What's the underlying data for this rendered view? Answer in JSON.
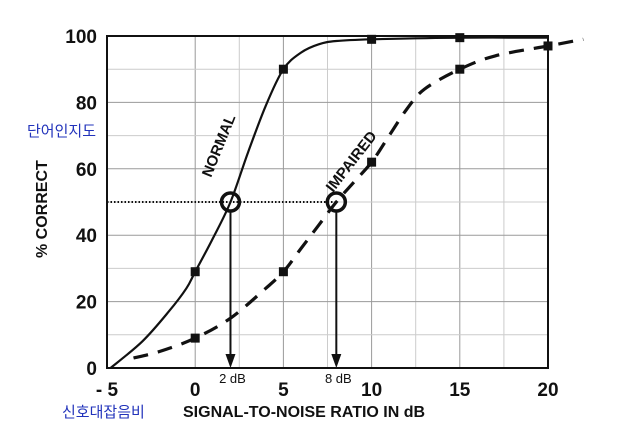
{
  "chart_data": {
    "type": "line",
    "xlabel": "SIGNAL-TO-NOISE RATIO IN dB",
    "ylabel": "% CORRECT",
    "xlim": [
      -5,
      20
    ],
    "ylim": [
      0,
      100
    ],
    "x_ticks": [
      -5,
      0,
      5,
      10,
      15,
      20
    ],
    "x_tick_labels": [
      "- 5",
      "0",
      "5",
      "10",
      "15",
      "20"
    ],
    "y_ticks": [
      0,
      20,
      40,
      60,
      80,
      100
    ],
    "y_tick_labels": [
      "0",
      "20",
      "40",
      "60",
      "80",
      "100"
    ],
    "grid": true,
    "series": [
      {
        "name": "NORMAL",
        "line_style": "solid",
        "points": [
          {
            "x": 0,
            "y": 29
          },
          {
            "x": 5,
            "y": 90
          },
          {
            "x": 10,
            "y": 99
          },
          {
            "x": 15,
            "y": 99.5
          }
        ],
        "curve": [
          [
            -4.8,
            0
          ],
          [
            -3,
            8
          ],
          [
            -1.5,
            17
          ],
          [
            -0.5,
            24
          ],
          [
            0,
            29
          ],
          [
            1,
            39
          ],
          [
            2,
            50
          ],
          [
            3,
            65
          ],
          [
            4,
            79
          ],
          [
            5,
            90
          ],
          [
            6,
            95
          ],
          [
            7,
            97.5
          ],
          [
            8,
            98.5
          ],
          [
            10,
            99
          ],
          [
            15,
            99.5
          ],
          [
            20,
            99.5
          ]
        ]
      },
      {
        "name": "IMPAIRED",
        "line_style": "dashed",
        "points": [
          {
            "x": 0,
            "y": 9
          },
          {
            "x": 5,
            "y": 29
          },
          {
            "x": 10,
            "y": 62
          },
          {
            "x": 15,
            "y": 90
          },
          {
            "x": 20,
            "y": 97
          }
        ],
        "curve": [
          [
            -3.5,
            3
          ],
          [
            -2,
            5
          ],
          [
            0,
            9
          ],
          [
            2,
            15
          ],
          [
            4,
            24
          ],
          [
            5,
            29
          ],
          [
            6,
            36
          ],
          [
            7,
            43
          ],
          [
            8,
            50
          ],
          [
            9,
            56
          ],
          [
            10,
            62
          ],
          [
            11,
            70
          ],
          [
            12,
            78
          ],
          [
            13,
            84
          ],
          [
            15,
            90
          ],
          [
            17,
            94
          ],
          [
            20,
            97
          ],
          [
            22,
            99
          ]
        ]
      }
    ],
    "threshold_line": {
      "y": 50,
      "x_from": -5,
      "x_to": 8
    },
    "markers": [
      {
        "x": 2,
        "y": 50,
        "label": "2 dB"
      },
      {
        "x": 8,
        "y": 50,
        "label": "8 dB"
      }
    ],
    "annotations": {
      "normal_curve_label": "NORMAL",
      "impaired_curve_label": "IMPAIRED",
      "korean_y": "단어인지도",
      "korean_x": "신호대잡음비"
    },
    "colors": {
      "lines": "#111111",
      "grid": "#9a9a9a",
      "korean_text": "#2233bb"
    }
  }
}
